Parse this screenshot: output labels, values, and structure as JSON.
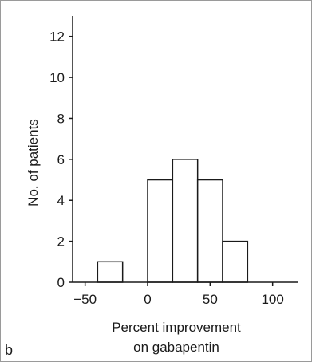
{
  "panel_label": "b",
  "chart_data": {
    "type": "bar",
    "subtype": "histogram",
    "bin_width": 20,
    "bins": [
      {
        "start": -40,
        "end": -20,
        "count": 1
      },
      {
        "start": 0,
        "end": 20,
        "count": 5
      },
      {
        "start": 20,
        "end": 40,
        "count": 6
      },
      {
        "start": 40,
        "end": 60,
        "count": 5
      },
      {
        "start": 60,
        "end": 80,
        "count": 2
      }
    ],
    "xlabel": [
      "Percent improvement",
      "on gabapentin"
    ],
    "ylabel": "No. of patients",
    "xlim": [
      -60,
      120
    ],
    "ylim": [
      0,
      13
    ],
    "xticks": [
      -50,
      0,
      50,
      100
    ],
    "xtick_labels": [
      "−50",
      "0",
      "50",
      "100"
    ],
    "yticks": [
      0,
      2,
      4,
      6,
      8,
      10,
      12
    ],
    "ytick_labels": [
      "0",
      "2",
      "4",
      "6",
      "8",
      "10",
      "12"
    ],
    "grid": false,
    "colors": {
      "bar_fill": "#ffffff",
      "bar_stroke": "#1a1a1a",
      "axis": "#1a1a1a"
    }
  }
}
